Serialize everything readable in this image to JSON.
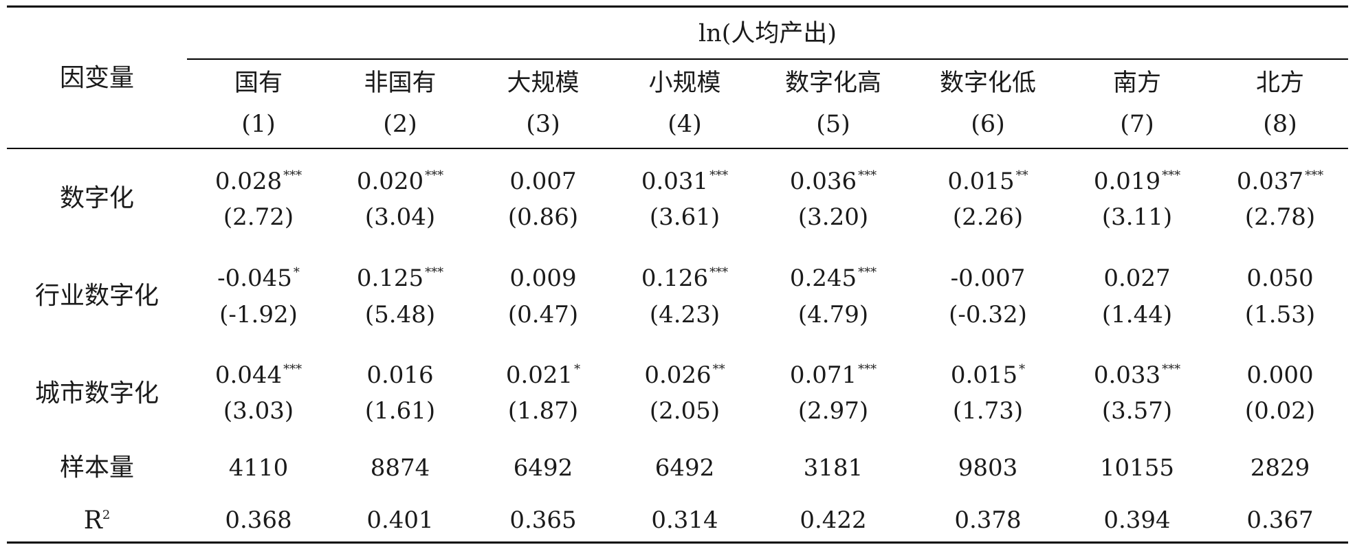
{
  "header": {
    "row_label": "因变量",
    "dependent": "ln(人均产出)"
  },
  "columns": [
    {
      "name": "国有",
      "num": "(1)"
    },
    {
      "name": "非国有",
      "num": "(2)"
    },
    {
      "name": "大规模",
      "num": "(3)"
    },
    {
      "name": "小规模",
      "num": "(4)"
    },
    {
      "name": "数字化高",
      "num": "(5)"
    },
    {
      "name": "数字化低",
      "num": "(6)"
    },
    {
      "name": "南方",
      "num": "(7)"
    },
    {
      "name": "北方",
      "num": "(8)"
    }
  ],
  "rows": [
    {
      "label": "数字化",
      "coef": [
        "0.028",
        "0.020",
        "0.007",
        "0.031",
        "0.036",
        "0.015",
        "0.019",
        "0.037"
      ],
      "stars": [
        "***",
        "***",
        "",
        "***",
        "***",
        "**",
        "***",
        "***"
      ],
      "t": [
        "(2.72)",
        "(3.04)",
        "(0.86)",
        "(3.61)",
        "(3.20)",
        "(2.26)",
        "(3.11)",
        "(2.78)"
      ]
    },
    {
      "label": "行业数字化",
      "coef": [
        "-0.045",
        "0.125",
        "0.009",
        "0.126",
        "0.245",
        "-0.007",
        "0.027",
        "0.050"
      ],
      "stars": [
        "*",
        "***",
        "",
        "***",
        "***",
        "",
        "",
        ""
      ],
      "t": [
        "(-1.92)",
        "(5.48)",
        "(0.47)",
        "(4.23)",
        "(4.79)",
        "(-0.32)",
        "(1.44)",
        "(1.53)"
      ]
    },
    {
      "label": "城市数字化",
      "coef": [
        "0.044",
        "0.016",
        "0.021",
        "0.026",
        "0.071",
        "0.015",
        "0.033",
        "0.000"
      ],
      "stars": [
        "***",
        "",
        "*",
        "**",
        "***",
        "*",
        "***",
        ""
      ],
      "t": [
        "(3.03)",
        "(1.61)",
        "(1.87)",
        "(2.05)",
        "(2.97)",
        "(1.73)",
        "(3.57)",
        "(0.02)"
      ]
    }
  ],
  "n_row": {
    "label": "样本量",
    "values": [
      "4110",
      "8874",
      "6492",
      "6492",
      "3181",
      "9803",
      "10155",
      "2829"
    ]
  },
  "r2_row": {
    "label_base": "R",
    "label_sup": "2",
    "values": [
      "0.368",
      "0.401",
      "0.365",
      "0.314",
      "0.422",
      "0.378",
      "0.394",
      "0.367"
    ]
  }
}
